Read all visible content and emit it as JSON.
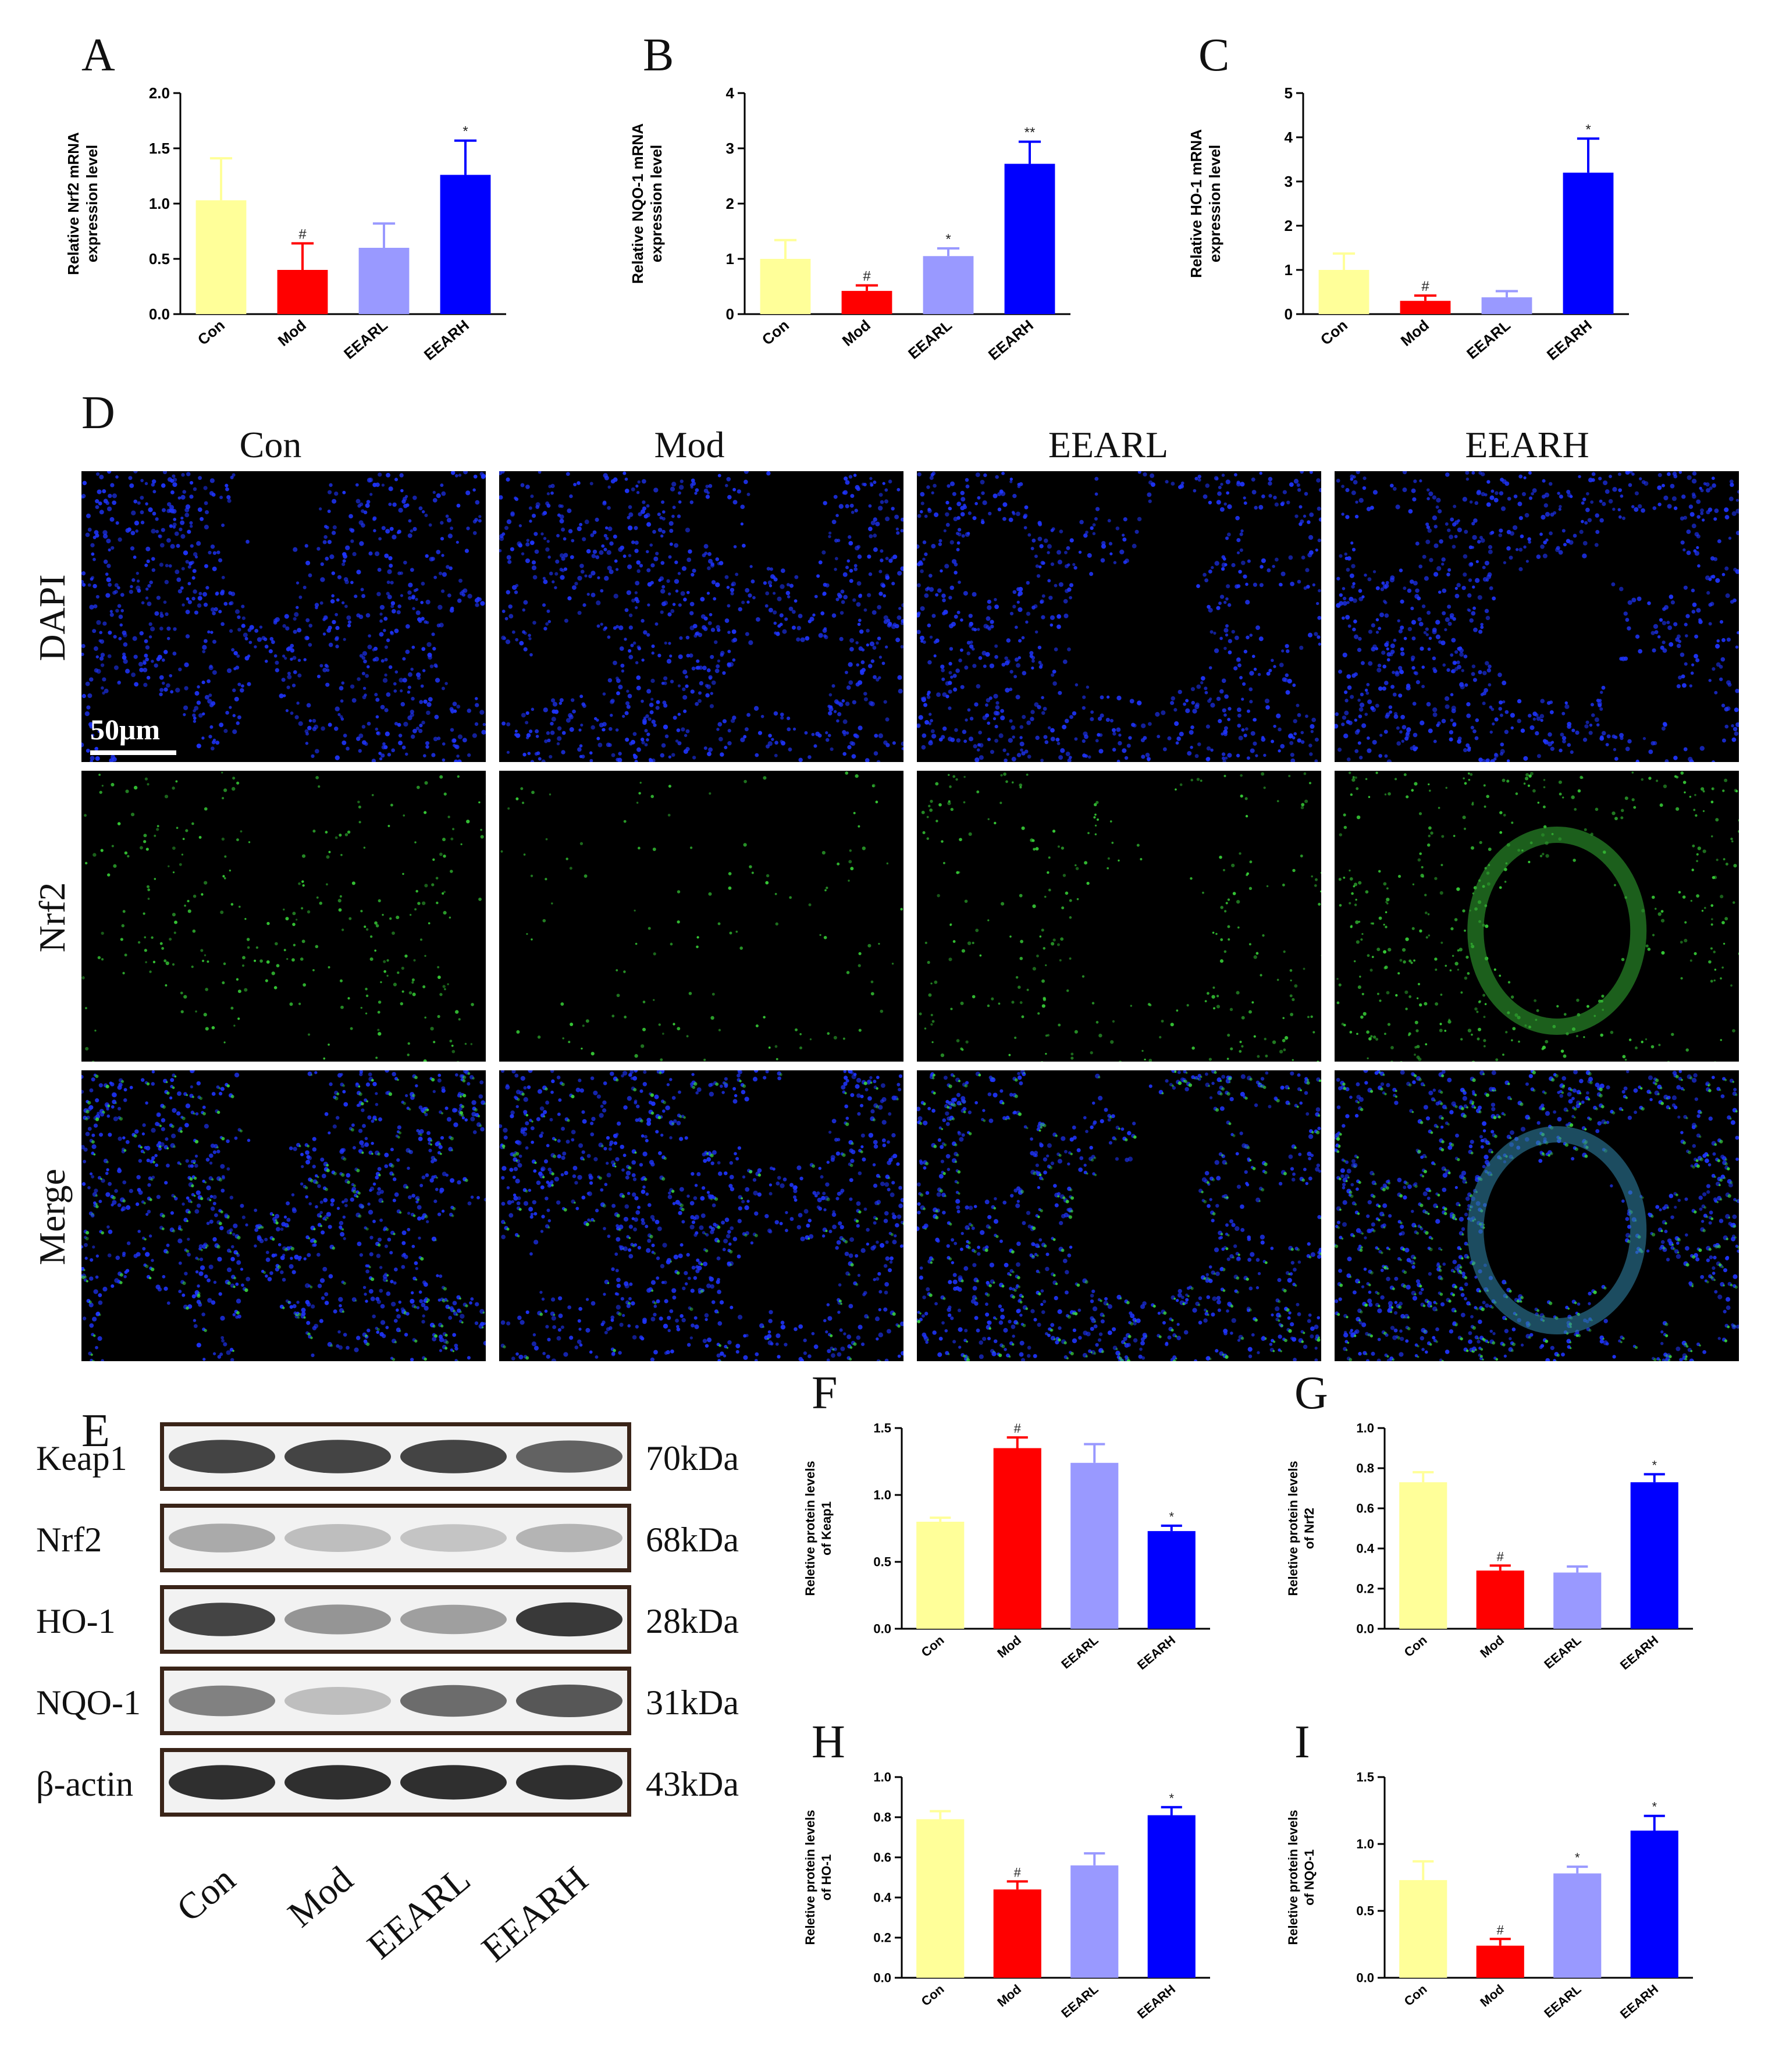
{
  "colors": {
    "con": "#ffff99",
    "mod": "#ff0000",
    "eearl": "#9999ff",
    "eearh": "#0000ff"
  },
  "groups": [
    "Con",
    "Mod",
    "EEARL",
    "EEARH"
  ],
  "panels": {
    "A": "A",
    "B": "B",
    "C": "C",
    "D": "D",
    "E": "E",
    "F": "F",
    "G": "G",
    "H": "H",
    "I": "I"
  },
  "microscopy": {
    "columns": [
      "Con",
      "Mod",
      "EEARL",
      "EEARH"
    ],
    "rows": [
      "DAPI",
      "Nrf2",
      "Merge"
    ],
    "scale_bar": "50μm"
  },
  "western_blot": {
    "bands": [
      {
        "protein": "Keap1",
        "kda": "70kDa",
        "intensity": [
          0.85,
          0.85,
          0.85,
          0.7
        ]
      },
      {
        "protein": "Nrf2",
        "kda": "68kDa",
        "intensity": [
          0.35,
          0.25,
          0.22,
          0.3
        ]
      },
      {
        "protein": "HO-1",
        "kda": "28kDa",
        "intensity": [
          0.85,
          0.45,
          0.4,
          0.9
        ]
      },
      {
        "protein": "NQO-1",
        "kda": "31kDa",
        "intensity": [
          0.55,
          0.25,
          0.65,
          0.75
        ]
      },
      {
        "protein": "β-actin",
        "kda": "43kDa",
        "intensity": [
          0.95,
          0.95,
          0.95,
          0.95
        ]
      }
    ],
    "lanes": [
      "Con",
      "Mod",
      "EEARL",
      "EEARH"
    ]
  },
  "chart_data": [
    {
      "panel": "A",
      "type": "bar",
      "categories": [
        "Con",
        "Mod",
        "EEARL",
        "EEARH"
      ],
      "values": [
        1.03,
        0.4,
        0.6,
        1.26
      ],
      "errors": [
        0.38,
        0.24,
        0.22,
        0.31
      ],
      "marks": [
        "",
        "#",
        "",
        "*"
      ],
      "ylabel": [
        "Relative Nrf2  mRNA",
        "expression level"
      ],
      "ylim": [
        0,
        2.0
      ],
      "ticks": [
        "0.0",
        "0.5",
        "1.0",
        "1.5",
        "2.0"
      ]
    },
    {
      "panel": "B",
      "type": "bar",
      "categories": [
        "Con",
        "Mod",
        "EEARL",
        "EEARH"
      ],
      "values": [
        1.0,
        0.42,
        1.05,
        2.72
      ],
      "errors": [
        0.34,
        0.1,
        0.14,
        0.4
      ],
      "marks": [
        "",
        "#",
        "*",
        "**"
      ],
      "ylabel": [
        "Relative NQO-1  mRNA",
        "expression level"
      ],
      "ylim": [
        0,
        4
      ],
      "ticks": [
        "0",
        "1",
        "2",
        "3",
        "4"
      ]
    },
    {
      "panel": "C",
      "type": "bar",
      "categories": [
        "Con",
        "Mod",
        "EEARL",
        "EEARH"
      ],
      "values": [
        1.0,
        0.3,
        0.38,
        3.2
      ],
      "errors": [
        0.37,
        0.12,
        0.14,
        0.77
      ],
      "marks": [
        "",
        "#",
        "",
        "*"
      ],
      "ylabel": [
        "Relative HO-1 mRNA",
        "expression level"
      ],
      "ylim": [
        0,
        5
      ],
      "ticks": [
        "0",
        "1",
        "2",
        "3",
        "4",
        "5"
      ]
    },
    {
      "panel": "F",
      "type": "bar",
      "categories": [
        "Con",
        "Mod",
        "EEARL",
        "EEARH"
      ],
      "values": [
        0.8,
        1.35,
        1.24,
        0.73
      ],
      "errors": [
        0.03,
        0.08,
        0.14,
        0.04
      ],
      "marks": [
        "",
        "#",
        "",
        "*"
      ],
      "ylabel": [
        "Reletive protein levels",
        "of Keap1"
      ],
      "ylim": [
        0,
        1.5
      ],
      "ticks": [
        "0.0",
        "0.5",
        "1.0",
        "1.5"
      ]
    },
    {
      "panel": "G",
      "type": "bar",
      "categories": [
        "Con",
        "Mod",
        "EEARL",
        "EEARH"
      ],
      "values": [
        0.73,
        0.29,
        0.28,
        0.73
      ],
      "errors": [
        0.05,
        0.025,
        0.03,
        0.04
      ],
      "marks": [
        "",
        "#",
        "",
        "*"
      ],
      "ylabel": [
        "Reletive protein levels",
        "of Nrf2"
      ],
      "ylim": [
        0,
        1.0
      ],
      "ticks": [
        "0.0",
        "0.2",
        "0.4",
        "0.6",
        "0.8",
        "1.0"
      ]
    },
    {
      "panel": "H",
      "type": "bar",
      "categories": [
        "Con",
        "Mod",
        "EEARL",
        "EEARH"
      ],
      "values": [
        0.79,
        0.44,
        0.56,
        0.81
      ],
      "errors": [
        0.04,
        0.04,
        0.06,
        0.04
      ],
      "marks": [
        "",
        "#",
        "",
        "*"
      ],
      "ylabel": [
        "Reletive protein levels",
        "of HO-1"
      ],
      "ylim": [
        0,
        1.0
      ],
      "ticks": [
        "0.0",
        "0.2",
        "0.4",
        "0.6",
        "0.8",
        "1.0"
      ]
    },
    {
      "panel": "I",
      "type": "bar",
      "categories": [
        "Con",
        "Mod",
        "EEARL",
        "EEARH"
      ],
      "values": [
        0.73,
        0.24,
        0.78,
        1.1
      ],
      "errors": [
        0.14,
        0.05,
        0.05,
        0.11
      ],
      "marks": [
        "",
        "#",
        "*",
        "*"
      ],
      "ylabel": [
        "Reletive protein levels",
        "of NQO-1"
      ],
      "ylim": [
        0,
        1.5
      ],
      "ticks": [
        "0.0",
        "0.5",
        "1.0",
        "1.5"
      ]
    }
  ]
}
